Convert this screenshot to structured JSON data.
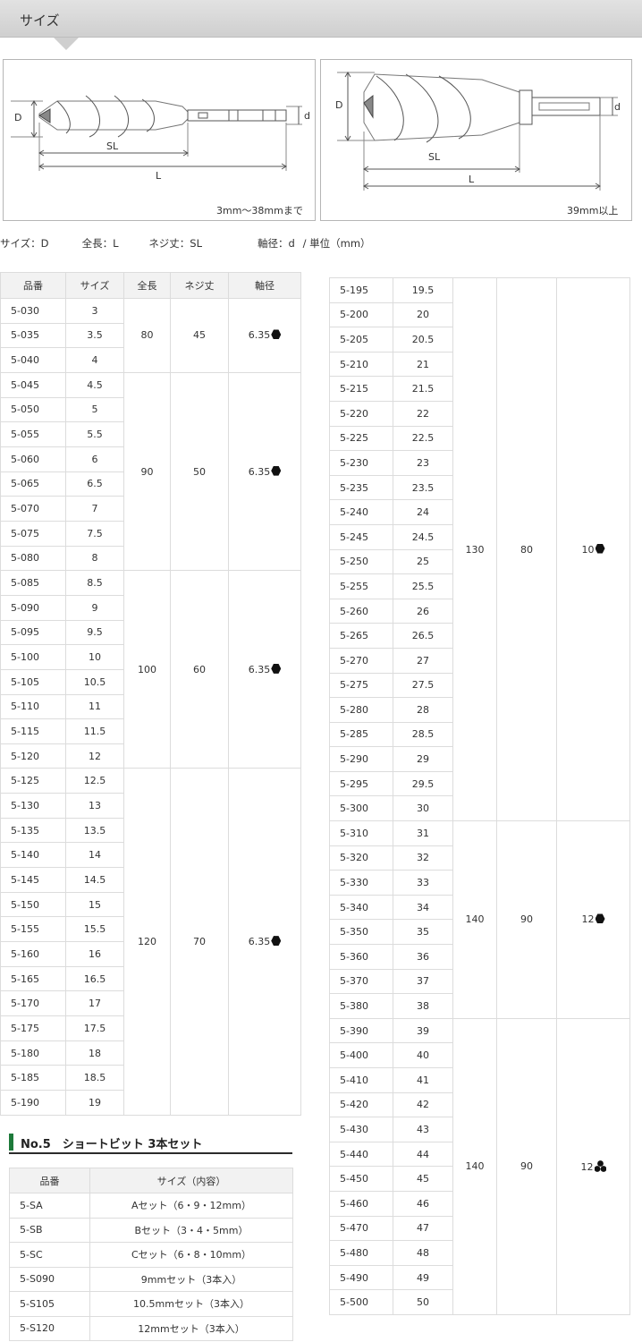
{
  "section_title": "サイズ",
  "diagrams": [
    {
      "caption": "3mm～38mmまで",
      "labels": {
        "d_big": "D",
        "sl": "SL",
        "l": "L",
        "d_small": "d"
      }
    },
    {
      "caption": "39mm以上",
      "labels": {
        "d_big": "D",
        "sl": "SL",
        "l": "L",
        "d_small": "d"
      }
    }
  ],
  "dimension_legend": {
    "size": "サイズ：D",
    "length": "全長：L",
    "screw": "ネジ丈：SL",
    "shaft": "軸径：d",
    "unit": "/ 単位（mm）"
  },
  "main_table": {
    "headers": [
      "品番",
      "サイズ",
      "全長",
      "ネジ丈",
      "軸径"
    ],
    "groups": [
      {
        "length": "80",
        "screw": "45",
        "shaft": "6.35",
        "shank": "hex",
        "rows": [
          [
            "5-030",
            "3"
          ],
          [
            "5-035",
            "3.5"
          ],
          [
            "5-040",
            "4"
          ]
        ]
      },
      {
        "length": "90",
        "screw": "50",
        "shaft": "6.35",
        "shank": "hex",
        "rows": [
          [
            "5-045",
            "4.5"
          ],
          [
            "5-050",
            "5"
          ],
          [
            "5-055",
            "5.5"
          ],
          [
            "5-060",
            "6"
          ],
          [
            "5-065",
            "6.5"
          ],
          [
            "5-070",
            "7"
          ],
          [
            "5-075",
            "7.5"
          ],
          [
            "5-080",
            "8"
          ]
        ]
      },
      {
        "length": "100",
        "screw": "60",
        "shaft": "6.35",
        "shank": "hex",
        "rows": [
          [
            "5-085",
            "8.5"
          ],
          [
            "5-090",
            "9"
          ],
          [
            "5-095",
            "9.5"
          ],
          [
            "5-100",
            "10"
          ],
          [
            "5-105",
            "10.5"
          ],
          [
            "5-110",
            "11"
          ],
          [
            "5-115",
            "11.5"
          ],
          [
            "5-120",
            "12"
          ]
        ]
      },
      {
        "length": "120",
        "screw": "70",
        "shaft": "6.35",
        "shank": "hex",
        "rows": [
          [
            "5-125",
            "12.5"
          ],
          [
            "5-130",
            "13"
          ],
          [
            "5-135",
            "13.5"
          ],
          [
            "5-140",
            "14"
          ],
          [
            "5-145",
            "14.5"
          ],
          [
            "5-150",
            "15"
          ],
          [
            "5-155",
            "15.5"
          ],
          [
            "5-160",
            "16"
          ],
          [
            "5-165",
            "16.5"
          ],
          [
            "5-170",
            "17"
          ],
          [
            "5-175",
            "17.5"
          ],
          [
            "5-180",
            "18"
          ],
          [
            "5-185",
            "18.5"
          ],
          [
            "5-190",
            "19"
          ]
        ]
      }
    ]
  },
  "right_table": {
    "groups": [
      {
        "length": "130",
        "screw": "80",
        "shaft": "10",
        "shank": "hex",
        "rows": [
          [
            "5-195",
            "19.5"
          ],
          [
            "5-200",
            "20"
          ],
          [
            "5-205",
            "20.5"
          ],
          [
            "5-210",
            "21"
          ],
          [
            "5-215",
            "21.5"
          ],
          [
            "5-220",
            "22"
          ],
          [
            "5-225",
            "22.5"
          ],
          [
            "5-230",
            "23"
          ],
          [
            "5-235",
            "23.5"
          ],
          [
            "5-240",
            "24"
          ],
          [
            "5-245",
            "24.5"
          ],
          [
            "5-250",
            "25"
          ],
          [
            "5-255",
            "25.5"
          ],
          [
            "5-260",
            "26"
          ],
          [
            "5-265",
            "26.5"
          ],
          [
            "5-270",
            "27"
          ],
          [
            "5-275",
            "27.5"
          ],
          [
            "5-280",
            "28"
          ],
          [
            "5-285",
            "28.5"
          ],
          [
            "5-290",
            "29"
          ],
          [
            "5-295",
            "29.5"
          ],
          [
            "5-300",
            "30"
          ]
        ]
      },
      {
        "length": "140",
        "screw": "90",
        "shaft": "12",
        "shank": "hex",
        "rows": [
          [
            "5-310",
            "31"
          ],
          [
            "5-320",
            "32"
          ],
          [
            "5-330",
            "33"
          ],
          [
            "5-340",
            "34"
          ],
          [
            "5-350",
            "35"
          ],
          [
            "5-360",
            "36"
          ],
          [
            "5-370",
            "37"
          ],
          [
            "5-380",
            "38"
          ]
        ]
      },
      {
        "length": "140",
        "screw": "90",
        "shaft": "12",
        "shank": "tri",
        "rows": [
          [
            "5-390",
            "39"
          ],
          [
            "5-400",
            "40"
          ],
          [
            "5-410",
            "41"
          ],
          [
            "5-420",
            "42"
          ],
          [
            "5-430",
            "43"
          ],
          [
            "5-440",
            "44"
          ],
          [
            "5-450",
            "45"
          ],
          [
            "5-460",
            "46"
          ],
          [
            "5-470",
            "47"
          ],
          [
            "5-480",
            "48"
          ],
          [
            "5-490",
            "49"
          ],
          [
            "5-500",
            "50"
          ]
        ]
      }
    ]
  },
  "set_section": {
    "title": "No.5　ショートビット 3本セット",
    "headers": [
      "品番",
      "サイズ（内容）"
    ],
    "rows": [
      [
        "5-SA",
        "Aセット（6・9・12mm）"
      ],
      [
        "5-SB",
        "Bセット（3・4・5mm）"
      ],
      [
        "5-SC",
        "Cセット（6・8・10mm）"
      ],
      [
        "5-S090",
        "9mmセット（3本入）"
      ],
      [
        "5-S105",
        "10.5mmセット（3本入）"
      ],
      [
        "5-S120",
        "12mmセット（3本入）"
      ]
    ]
  }
}
